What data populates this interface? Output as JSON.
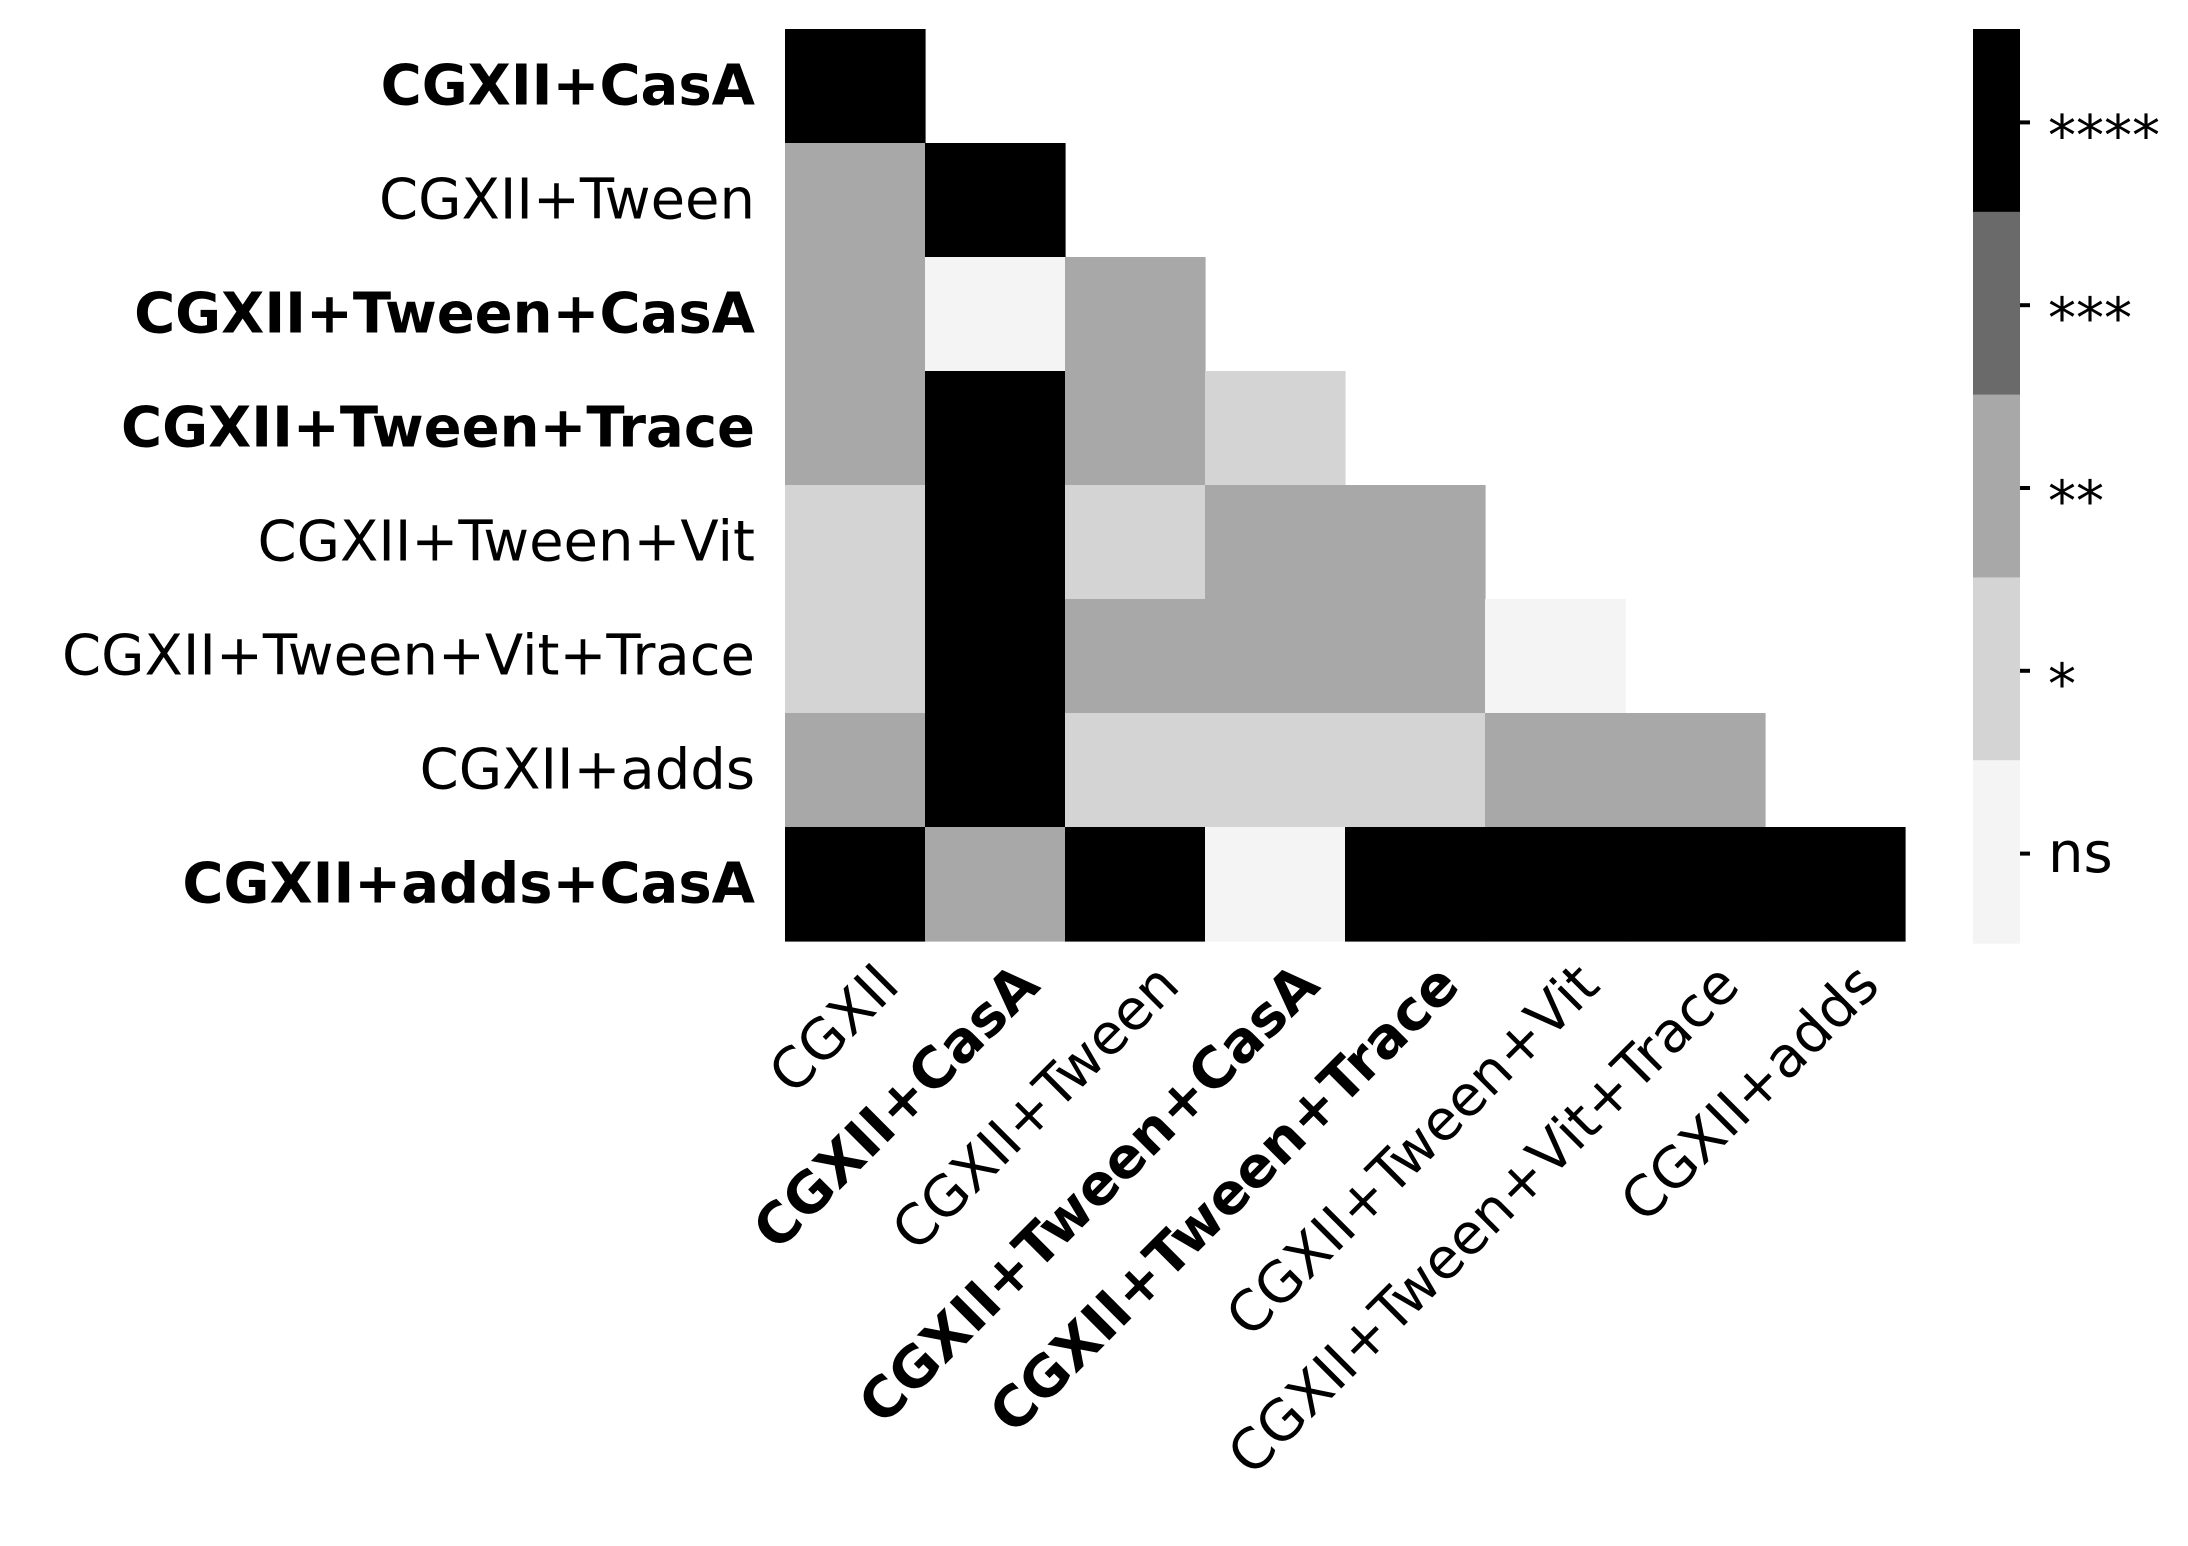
{
  "chart_data": {
    "type": "heatmap",
    "title": "",
    "xlabel": "",
    "ylabel": "",
    "x_labels": [
      {
        "text": "CGXII",
        "bold": false
      },
      {
        "text": "CGXII+CasA",
        "bold": true
      },
      {
        "text": "CGXII+Tween",
        "bold": false
      },
      {
        "text": "CGXII+Tween+CasA",
        "bold": true
      },
      {
        "text": "CGXII+Tween+Trace",
        "bold": true
      },
      {
        "text": "CGXII+Tween+Vit",
        "bold": false
      },
      {
        "text": "CGXII+Tween+Vit+Trace",
        "bold": false
      },
      {
        "text": "CGXII+adds",
        "bold": false
      }
    ],
    "y_labels": [
      {
        "text": "CGXII+CasA",
        "bold": true
      },
      {
        "text": "CGXII+Tween",
        "bold": false
      },
      {
        "text": "CGXII+Tween+CasA",
        "bold": true
      },
      {
        "text": "CGXII+Tween+Trace",
        "bold": true
      },
      {
        "text": "CGXII+Tween+Vit",
        "bold": false
      },
      {
        "text": "CGXII+Tween+Vit+Trace",
        "bold": false
      },
      {
        "text": "CGXII+adds",
        "bold": false
      },
      {
        "text": "CGXII+adds+CasA",
        "bold": true
      }
    ],
    "levels": [
      "ns",
      "*",
      "**",
      "***",
      "****"
    ],
    "level_colors": [
      "#f4f4f4",
      "#d4d4d4",
      "#a8a8a8",
      "#6a6a6a",
      "#000000"
    ],
    "matrix": [
      [
        "****"
      ],
      [
        "**",
        "****"
      ],
      [
        "**",
        "ns",
        "**"
      ],
      [
        "**",
        "****",
        "**",
        "*"
      ],
      [
        "*",
        "****",
        "*",
        "**",
        "**"
      ],
      [
        "*",
        "****",
        "**",
        "**",
        "**",
        "ns"
      ],
      [
        "**",
        "****",
        "*",
        "*",
        "*",
        "**",
        "**"
      ],
      [
        "****",
        "**",
        "****",
        "ns",
        "****",
        "****",
        "****",
        "****"
      ]
    ],
    "colorbar": {
      "tick_labels": [
        "****",
        "***",
        "**",
        "*",
        "ns"
      ]
    }
  }
}
